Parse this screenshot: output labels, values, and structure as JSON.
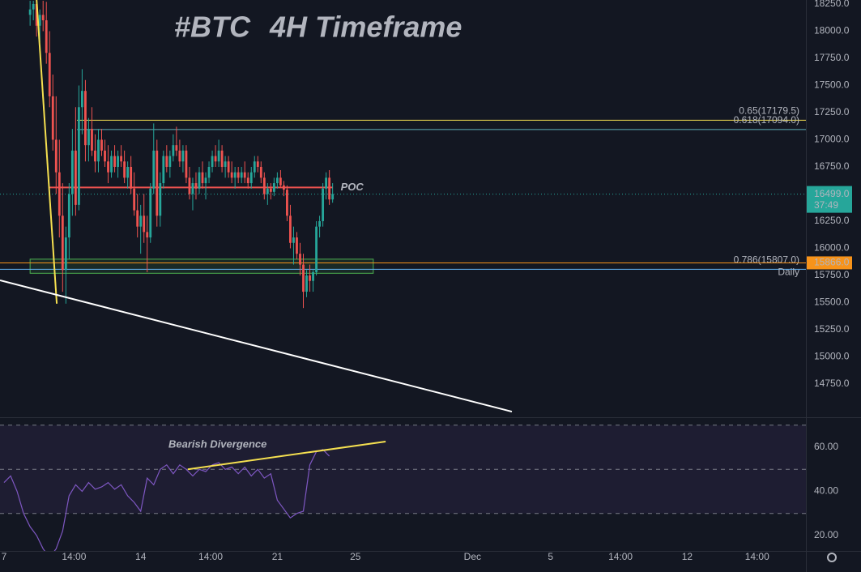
{
  "chart_data": {
    "type": "candlestick",
    "title": {
      "symbol": "#BTC",
      "text": "4H Timeframe",
      "symbol_color": "#f7931a",
      "text_color": "#ffffff"
    },
    "up_color": "#26a69a",
    "down_color": "#ef5350",
    "x": [
      8,
      9,
      10,
      11,
      12,
      13,
      14,
      15,
      16,
      17,
      18,
      19,
      20,
      21,
      22,
      23,
      24,
      25,
      26,
      27,
      28,
      29,
      30,
      31,
      32,
      33,
      34,
      35,
      36,
      37,
      38,
      39,
      40,
      41,
      42,
      43,
      44,
      45,
      46,
      47,
      48,
      49,
      50,
      51,
      52,
      53,
      54,
      55,
      56,
      57,
      58,
      59,
      60,
      61,
      62,
      63,
      64,
      65,
      66,
      67,
      68,
      69,
      70,
      71,
      72,
      73,
      74,
      75,
      76,
      77,
      78,
      79,
      80,
      81,
      82,
      83,
      84,
      85,
      86,
      87,
      88,
      89,
      90,
      91,
      92,
      93,
      94,
      95,
      96,
      97,
      98,
      99,
      100,
      101
    ],
    "ohlc": [
      [
        18150,
        18280,
        18050,
        18200
      ],
      [
        18200,
        18280,
        18100,
        18250
      ],
      [
        18250,
        18280,
        17950,
        18050
      ],
      [
        18050,
        18200,
        17900,
        18150
      ],
      [
        18150,
        18280,
        18000,
        18100
      ],
      [
        18100,
        18270,
        17700,
        17800
      ],
      [
        17800,
        18000,
        17300,
        17400
      ],
      [
        17400,
        17600,
        16900,
        17000
      ],
      [
        17000,
        17400,
        16500,
        16700
      ],
      [
        16700,
        17000,
        16100,
        16300
      ],
      [
        16300,
        16600,
        15600,
        15800
      ],
      [
        15800,
        16200,
        15490,
        16100
      ],
      [
        16100,
        16600,
        15900,
        16500
      ],
      [
        16500,
        17100,
        16300,
        16900
      ],
      [
        16900,
        17300,
        16300,
        16400
      ],
      [
        16400,
        17500,
        16350,
        17300
      ],
      [
        17300,
        17650,
        17050,
        17450
      ],
      [
        17450,
        17550,
        16800,
        16950
      ],
      [
        16950,
        17200,
        16800,
        17100
      ],
      [
        17100,
        17300,
        16850,
        16900
      ],
      [
        16900,
        17050,
        16700,
        16800
      ],
      [
        16800,
        17100,
        16700,
        17000
      ],
      [
        17000,
        17100,
        16850,
        16900
      ],
      [
        16900,
        17000,
        16750,
        16800
      ],
      [
        16800,
        16950,
        16600,
        16700
      ],
      [
        16700,
        16900,
        16650,
        16850
      ],
      [
        16850,
        16950,
        16700,
        16750
      ],
      [
        16750,
        16900,
        16650,
        16850
      ],
      [
        16850,
        16950,
        16750,
        16800
      ],
      [
        16800,
        16900,
        16600,
        16650
      ],
      [
        16650,
        16800,
        16550,
        16750
      ],
      [
        16750,
        16850,
        16500,
        16550
      ],
      [
        16550,
        16700,
        16300,
        16350
      ],
      [
        16350,
        16500,
        16100,
        16200
      ],
      [
        16200,
        16400,
        15950,
        16300
      ],
      [
        16300,
        16500,
        16050,
        16150
      ],
      [
        16150,
        16300,
        15780,
        16100
      ],
      [
        16100,
        16600,
        16050,
        16550
      ],
      [
        16550,
        17150,
        16500,
        16900
      ],
      [
        16900,
        17000,
        16200,
        16300
      ],
      [
        16300,
        16700,
        16200,
        16600
      ],
      [
        16600,
        16900,
        16550,
        16850
      ],
      [
        16850,
        16950,
        16700,
        16750
      ],
      [
        16750,
        16900,
        16650,
        16850
      ],
      [
        16850,
        17050,
        16800,
        16950
      ],
      [
        16950,
        17120,
        16850,
        16900
      ],
      [
        16900,
        17000,
        16750,
        16800
      ],
      [
        16800,
        16950,
        16700,
        16900
      ],
      [
        16900,
        16950,
        16600,
        16650
      ],
      [
        16650,
        16750,
        16450,
        16500
      ],
      [
        16500,
        16650,
        16350,
        16600
      ],
      [
        16600,
        16700,
        16450,
        16550
      ],
      [
        16550,
        16750,
        16500,
        16700
      ],
      [
        16700,
        16800,
        16550,
        16600
      ],
      [
        16600,
        16700,
        16450,
        16650
      ],
      [
        16650,
        16800,
        16600,
        16750
      ],
      [
        16750,
        16900,
        16700,
        16850
      ],
      [
        16850,
        16950,
        16750,
        16800
      ],
      [
        16800,
        17000,
        16750,
        16900
      ],
      [
        16900,
        16950,
        16700,
        16750
      ],
      [
        16750,
        16850,
        16650,
        16800
      ],
      [
        16800,
        16850,
        16650,
        16700
      ],
      [
        16700,
        16800,
        16600,
        16650
      ],
      [
        16650,
        16750,
        16550,
        16700
      ],
      [
        16700,
        16750,
        16600,
        16650
      ],
      [
        16650,
        16750,
        16600,
        16700
      ],
      [
        16700,
        16800,
        16600,
        16650
      ],
      [
        16650,
        16700,
        16550,
        16600
      ],
      [
        16600,
        16750,
        16550,
        16700
      ],
      [
        16700,
        16850,
        16650,
        16800
      ],
      [
        16800,
        16850,
        16700,
        16750
      ],
      [
        16750,
        16800,
        16600,
        16650
      ],
      [
        16650,
        16700,
        16450,
        16500
      ],
      [
        16500,
        16600,
        16400,
        16550
      ],
      [
        16550,
        16600,
        16450,
        16520
      ],
      [
        16520,
        16650,
        16480,
        16600
      ],
      [
        16600,
        16700,
        16550,
        16650
      ],
      [
        16650,
        16720,
        16560,
        16580
      ],
      [
        16580,
        16620,
        16480,
        16540
      ],
      [
        16540,
        16580,
        16250,
        16300
      ],
      [
        16300,
        16400,
        16000,
        16050
      ],
      [
        16050,
        16200,
        15850,
        16100
      ],
      [
        16100,
        16150,
        15900,
        15950
      ],
      [
        15950,
        16050,
        15750,
        15850
      ],
      [
        15850,
        15950,
        15450,
        15600
      ],
      [
        15600,
        15800,
        15550,
        15750
      ],
      [
        15750,
        15850,
        15600,
        15700
      ],
      [
        15700,
        15800,
        15600,
        15780
      ],
      [
        15780,
        16250,
        15750,
        16200
      ],
      [
        16200,
        16300,
        16100,
        16250
      ],
      [
        16250,
        16600,
        16200,
        16550
      ],
      [
        16550,
        16700,
        16450,
        16650
      ],
      [
        16650,
        16720,
        16400,
        16450
      ],
      [
        16450,
        16600,
        16420,
        16499
      ]
    ],
    "xlim": [
      -1.25,
      246.5
    ],
    "xticks": [
      {
        "value": 0,
        "label": "7"
      },
      {
        "value": 21.5,
        "label": "14:00"
      },
      {
        "value": 42,
        "label": "14"
      },
      {
        "value": 63.5,
        "label": "14:00"
      },
      {
        "value": 84,
        "label": "21"
      },
      {
        "value": 108,
        "label": "25"
      },
      {
        "value": 144,
        "label": "Dec"
      },
      {
        "value": 168,
        "label": "5"
      },
      {
        "value": 189.5,
        "label": "14:00"
      },
      {
        "value": 210,
        "label": "12"
      },
      {
        "value": 231.5,
        "label": "14:00"
      }
    ],
    "ylim": [
      14444,
      18287
    ],
    "yticks": [
      {
        "value": 18250,
        "label": "18250.0"
      },
      {
        "value": 18000,
        "label": "18000.0"
      },
      {
        "value": 17750,
        "label": "17750.0"
      },
      {
        "value": 17500,
        "label": "17500.0"
      },
      {
        "value": 17250,
        "label": "17250.0"
      },
      {
        "value": 17000,
        "label": "17000.0"
      },
      {
        "value": 16750,
        "label": "16750.0"
      },
      {
        "value": 16250,
        "label": "16250.0"
      },
      {
        "value": 16000,
        "label": "16000.0"
      },
      {
        "value": 15750,
        "label": "15750.0"
      },
      {
        "value": 15500,
        "label": "15500.0"
      },
      {
        "value": 15250,
        "label": "15250.0"
      },
      {
        "value": 15000,
        "label": "15000.0"
      },
      {
        "value": 14750,
        "label": "14750.0"
      }
    ],
    "last_price": {
      "value": 16499,
      "label": "16499.0",
      "countdown": "37:49",
      "color": "#26a69a"
    },
    "levels": [
      {
        "label": "0.65(17179.5)",
        "value": 17179.5,
        "x_from": 22.4,
        "color": "#f5e050"
      },
      {
        "label": "0.618(17094.0)",
        "value": 17094,
        "x_from": 22.4,
        "color": "#5fb0b7"
      },
      {
        "label": "0.786(15807.0)",
        "value": 15807,
        "x_from": -1.25,
        "color": "#64b5f6"
      }
    ],
    "daily": {
      "label": "Daily",
      "value": 15866,
      "value_label": "15866.0",
      "color": "#f7931a"
    },
    "poc": {
      "label": "POC",
      "value": 16560,
      "x": [
        14,
        101
      ],
      "color": "#ef5350"
    },
    "zone": {
      "x": [
        8,
        113.5
      ],
      "y": [
        15770,
        15900
      ],
      "color": "#4caf50"
    },
    "trendlines": [
      {
        "x": [
          10,
          16.2
        ],
        "y": [
          18290,
          15490
        ],
        "color": "#f5e050"
      },
      {
        "x": [
          -1.25,
          156.1
        ],
        "y": [
          15705,
          14496
        ],
        "color": "#ffffff"
      }
    ],
    "rsi": {
      "x": [
        0,
        2,
        4,
        6,
        8,
        10,
        12,
        14,
        16,
        18,
        20,
        22,
        24,
        26,
        28,
        30,
        32,
        34,
        36,
        38,
        40,
        42,
        44,
        46,
        48,
        50,
        52,
        54,
        56,
        58,
        60,
        62,
        64,
        66,
        68,
        70,
        72,
        74,
        76,
        78,
        80,
        82,
        84,
        86,
        88,
        90,
        92,
        94,
        96,
        98,
        100
      ],
      "values": [
        44,
        47,
        40,
        30,
        24,
        20,
        14,
        10,
        14,
        22,
        38,
        43,
        40,
        44,
        41,
        42,
        44,
        41,
        43,
        38,
        35,
        31,
        46,
        43,
        50,
        52,
        48,
        52,
        50,
        47,
        50,
        49,
        52,
        53,
        50,
        51,
        48,
        51,
        47,
        50,
        46,
        48,
        36,
        32,
        28,
        30,
        31,
        52,
        58,
        59,
        56
      ],
      "color": "#7e57c2",
      "ylim": [
        13,
        73.6
      ],
      "yticks": [
        {
          "value": 60,
          "label": "60.00"
        },
        {
          "value": 40,
          "label": "40.00"
        },
        {
          "value": 20,
          "label": "20.00"
        }
      ],
      "bands": [
        70,
        50,
        30
      ],
      "annotation": {
        "text": "Bearish Divergence",
        "x": [
          56.5,
          117.3
        ],
        "y": [
          50,
          62.6
        ],
        "color": "#f5e050"
      }
    }
  }
}
